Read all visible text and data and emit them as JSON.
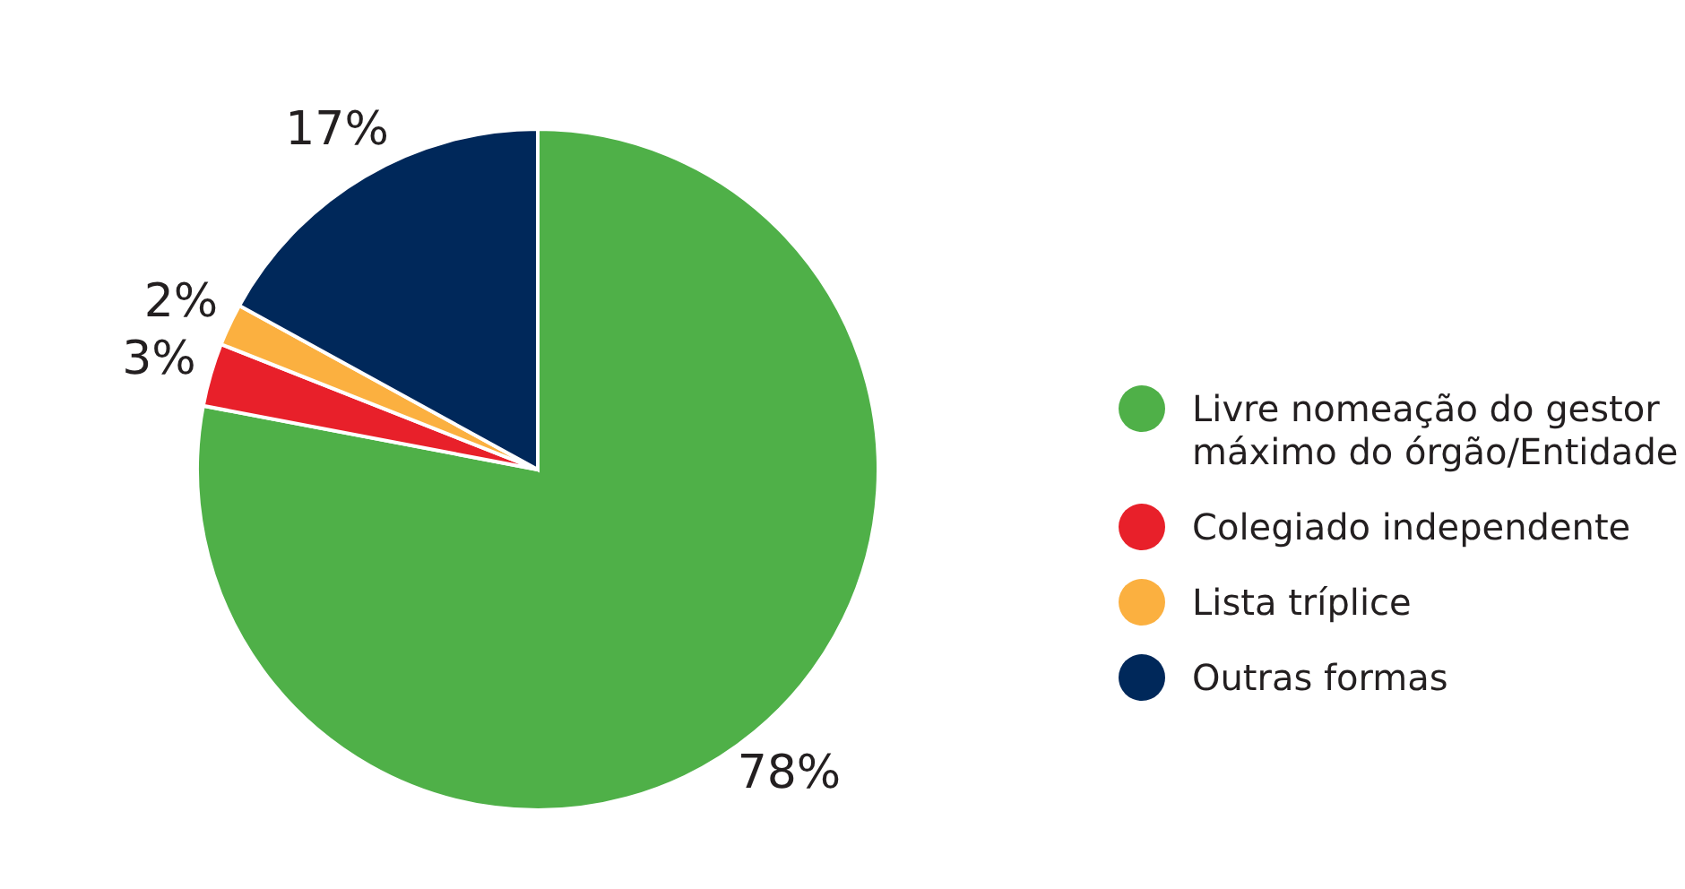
{
  "chart_data": {
    "type": "pie",
    "categories": [
      "Livre nomeação do gestor máximo do órgão/Entidade",
      "Colegiado independente",
      "Lista tríplice",
      "Outras formas"
    ],
    "values": [
      78,
      3,
      2,
      17
    ],
    "colors": [
      "#4fb048",
      "#e8202a",
      "#fbb040",
      "#00285a"
    ],
    "value_labels": [
      "78%",
      "3%",
      "2%",
      "17%"
    ],
    "legend": "right"
  }
}
